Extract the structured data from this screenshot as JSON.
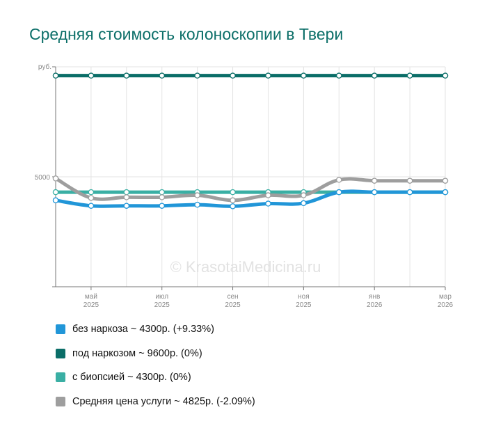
{
  "title": "Средняя стоимость колоноскопии в Твери",
  "watermark": "© KrasotaiMedicina.ru",
  "chart_data": {
    "type": "line",
    "x": [
      "2025-04",
      "2025-05",
      "2025-06",
      "2025-07",
      "2025-08",
      "2025-09",
      "2025-10",
      "2025-11",
      "2025-12",
      "2026-01",
      "2026-02",
      "2026-03"
    ],
    "x_tick_labels": [
      {
        "x": "2025-05",
        "month": "май",
        "year": "2025"
      },
      {
        "x": "2025-07",
        "month": "июл",
        "year": "2025"
      },
      {
        "x": "2025-09",
        "month": "сен",
        "year": "2025"
      },
      {
        "x": "2025-11",
        "month": "ноя",
        "year": "2025"
      },
      {
        "x": "2026-01",
        "month": "янв",
        "year": "2026"
      },
      {
        "x": "2026-03",
        "month": "мар",
        "year": "2026"
      }
    ],
    "y_unit_label": "руб.",
    "y_tick_labels": [
      {
        "value": 5000,
        "label": "5000"
      }
    ],
    "ylim": [
      0,
      10000
    ],
    "grid": true,
    "legend_position": "bottom",
    "series": [
      {
        "name": "без наркоза",
        "summary": "~ 4300р. (+9.33%)",
        "color": "#2196d8",
        "values": [
          3930,
          3680,
          3680,
          3680,
          3730,
          3660,
          3780,
          3800,
          4300,
          4300,
          4300,
          4300
        ]
      },
      {
        "name": "под наркозом",
        "summary": "~ 9600р. (0%)",
        "color": "#0b6e68",
        "values": [
          9600,
          9600,
          9600,
          9600,
          9600,
          9600,
          9600,
          9600,
          9600,
          9600,
          9600,
          9600
        ]
      },
      {
        "name": "с биопсией",
        "summary": "~ 4300р. (0%)",
        "color": "#3aafa4",
        "values": [
          4300,
          4300,
          4300,
          4300,
          4300,
          4300,
          4300,
          4300,
          4300,
          4300,
          4300,
          4300
        ]
      },
      {
        "name": "Средняя цена услуги",
        "summary": "~ 4825р. (-2.09%)",
        "color": "#9e9e9e",
        "values": [
          4925,
          4040,
          4070,
          4070,
          4160,
          3930,
          4160,
          4160,
          4860,
          4820,
          4820,
          4820
        ]
      }
    ]
  }
}
